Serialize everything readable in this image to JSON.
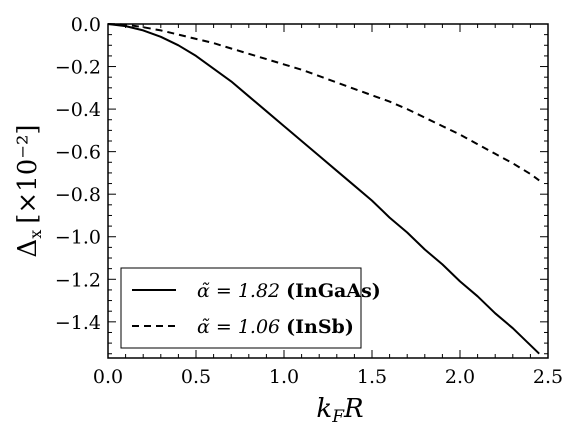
{
  "chart_data": {
    "type": "line",
    "xlabel_main": "k",
    "xlabel_sub": "F",
    "xlabel_rest": "R",
    "ylabel_main": "Δ",
    "ylabel_sub": "x",
    "ylabel_unit": "[×10⁻²]",
    "xlim": [
      0.0,
      2.5
    ],
    "ylim": [
      -1.57,
      0.0
    ],
    "xticks": [
      0.0,
      0.5,
      1.0,
      1.5,
      2.0,
      2.5
    ],
    "xtick_labels": [
      "0.0",
      "0.5",
      "1.0",
      "1.5",
      "2.0",
      "2.5"
    ],
    "yticks": [
      0.0,
      -0.2,
      -0.4,
      -0.6,
      -0.8,
      -1.0,
      -1.2,
      -1.4
    ],
    "ytick_labels": [
      "0.0",
      "−0.2",
      "−0.4",
      "−0.6",
      "−0.8",
      "−1.0",
      "−1.2",
      "−1.4"
    ],
    "grid": false,
    "legend_position": "bottom-left",
    "series": [
      {
        "name": "α̃ = 1.82 (InGaAs)",
        "legend_math": "α̃ = 1.82",
        "legend_bold": "(InGaAs)",
        "style": "solid",
        "color": "#000000",
        "x": [
          0.0,
          0.1,
          0.2,
          0.3,
          0.4,
          0.5,
          0.6,
          0.7,
          0.8,
          0.9,
          1.0,
          1.1,
          1.2,
          1.3,
          1.4,
          1.5,
          1.6,
          1.7,
          1.8,
          1.9,
          2.0,
          2.1,
          2.2,
          2.3,
          2.4,
          2.45
        ],
        "y": [
          0.0,
          -0.01,
          -0.03,
          -0.06,
          -0.1,
          -0.15,
          -0.21,
          -0.27,
          -0.34,
          -0.41,
          -0.48,
          -0.55,
          -0.62,
          -0.69,
          -0.76,
          -0.83,
          -0.91,
          -0.98,
          -1.06,
          -1.13,
          -1.21,
          -1.28,
          -1.36,
          -1.43,
          -1.51,
          -1.55
        ]
      },
      {
        "name": "α̃ = 1.06 (InSb)",
        "legend_math": "α̃ = 1.06",
        "legend_bold": "(InSb)",
        "style": "dashed",
        "color": "#000000",
        "x": [
          0.0,
          0.1,
          0.2,
          0.3,
          0.4,
          0.5,
          0.6,
          0.7,
          0.8,
          0.9,
          1.0,
          1.1,
          1.2,
          1.3,
          1.4,
          1.5,
          1.6,
          1.7,
          1.8,
          1.9,
          2.0,
          2.1,
          2.2,
          2.3,
          2.4,
          2.45
        ],
        "y": [
          0.0,
          -0.003,
          -0.015,
          -0.03,
          -0.05,
          -0.07,
          -0.09,
          -0.115,
          -0.14,
          -0.165,
          -0.19,
          -0.215,
          -0.245,
          -0.275,
          -0.305,
          -0.335,
          -0.365,
          -0.4,
          -0.44,
          -0.48,
          -0.52,
          -0.565,
          -0.61,
          -0.655,
          -0.705,
          -0.735
        ]
      }
    ]
  }
}
